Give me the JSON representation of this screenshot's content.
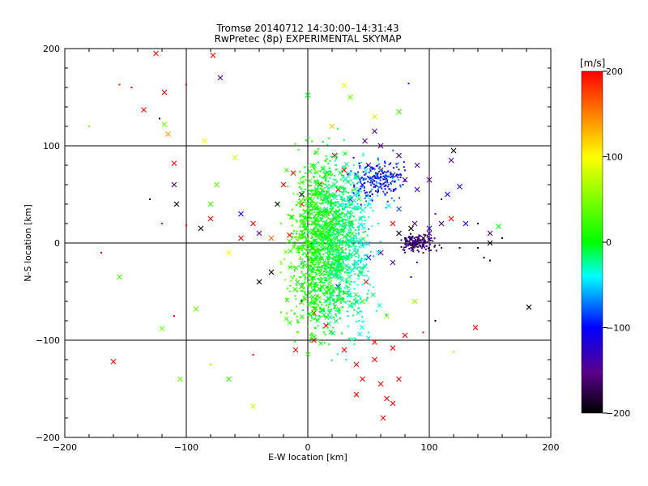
{
  "title_line1": "Tromsø 20140712 14:30:00–14:31:43",
  "title_line2": "RwPretec (8p) EXPERIMENTAL SKYMAP",
  "chart_data": {
    "type": "scatter",
    "title": "Tromsø 20140712 14:30:00–14:31:43 RwPretec (8p) EXPERIMENTAL SKYMAP",
    "xlabel": "E-W location [km]",
    "ylabel": "N-S location [km]",
    "xlim": [
      -200,
      200
    ],
    "ylim": [
      -200,
      200
    ],
    "x_ticks": [
      "−200",
      "−100",
      "0",
      "100",
      "200"
    ],
    "y_ticks": [
      "200",
      "100",
      "0",
      "−100",
      "−200"
    ],
    "grid_lines_x": [
      -100,
      0,
      100
    ],
    "grid_lines_y": [
      -100,
      0,
      100
    ],
    "colorbar": {
      "label": "[m/s]",
      "range": [
        -200,
        200
      ],
      "ticks": [
        "200",
        "100",
        "0",
        "−100",
        "−200"
      ],
      "colors": [
        "#000000",
        "#5a008c",
        "#0000ff",
        "#00ffff",
        "#00ff00",
        "#ffff00",
        "#ff0000"
      ]
    },
    "marker_legend": {
      "cross": "large symbols (x)",
      "dot": "small symbols"
    },
    "points": [
      [
        -125,
        195,
        200,
        "x"
      ],
      [
        -78,
        193,
        200,
        "x"
      ],
      [
        -72,
        170,
        -150,
        "x"
      ],
      [
        -155,
        163,
        200,
        "."
      ],
      [
        -145,
        160,
        200,
        "."
      ],
      [
        -118,
        155,
        200,
        "x"
      ],
      [
        -100,
        163,
        200,
        "."
      ],
      [
        -135,
        137,
        200,
        "x"
      ],
      [
        -122,
        128,
        -200,
        "."
      ],
      [
        -118,
        122,
        40,
        "x"
      ],
      [
        -115,
        112,
        140,
        "x"
      ],
      [
        -180,
        120,
        50,
        "."
      ],
      [
        -110,
        82,
        200,
        "x"
      ],
      [
        -110,
        60,
        -160,
        "x"
      ],
      [
        -108,
        40,
        -200,
        "x"
      ],
      [
        -130,
        45,
        -200,
        "."
      ],
      [
        -85,
        105,
        100,
        "x"
      ],
      [
        -60,
        88,
        80,
        "x"
      ],
      [
        -75,
        60,
        40,
        "x"
      ],
      [
        -80,
        40,
        20,
        "x"
      ],
      [
        -88,
        15,
        -200,
        "x"
      ],
      [
        -80,
        25,
        200,
        "x"
      ],
      [
        -55,
        30,
        -100,
        "x"
      ],
      [
        -45,
        20,
        200,
        "x"
      ],
      [
        -40,
        10,
        -150,
        "x"
      ],
      [
        -30,
        5,
        160,
        "x"
      ],
      [
        -55,
        5,
        200,
        "x"
      ],
      [
        -65,
        -10,
        100,
        "x"
      ],
      [
        -120,
        20,
        200,
        "."
      ],
      [
        -100,
        18,
        200,
        "."
      ],
      [
        -170,
        -10,
        200,
        "."
      ],
      [
        -155,
        -35,
        30,
        "x"
      ],
      [
        -120,
        -88,
        40,
        "x"
      ],
      [
        -110,
        -75,
        200,
        "."
      ],
      [
        -92,
        -68,
        40,
        "x"
      ],
      [
        -160,
        -122,
        200,
        "x"
      ],
      [
        -105,
        -140,
        40,
        "x"
      ],
      [
        -65,
        -140,
        20,
        "x"
      ],
      [
        -45,
        -168,
        80,
        "x"
      ],
      [
        -80,
        -125,
        60,
        "."
      ],
      [
        -30,
        -30,
        -200,
        "x"
      ],
      [
        -40,
        -40,
        -200,
        "x"
      ],
      [
        -20,
        60,
        200,
        "x"
      ],
      [
        -25,
        40,
        -200,
        "x"
      ],
      [
        -12,
        72,
        200,
        "x"
      ],
      [
        10,
        60,
        200,
        "x"
      ],
      [
        22,
        90,
        200,
        "x"
      ],
      [
        25,
        55,
        200,
        "x"
      ],
      [
        30,
        75,
        200,
        "x"
      ],
      [
        -5,
        50,
        -200,
        "x"
      ],
      [
        -15,
        8,
        200,
        "x"
      ],
      [
        -5,
        -60,
        -200,
        "."
      ],
      [
        5,
        -72,
        200,
        "x"
      ],
      [
        15,
        -85,
        200,
        "x"
      ],
      [
        5,
        -100,
        200,
        "x"
      ],
      [
        -10,
        -110,
        200,
        "x"
      ],
      [
        30,
        -110,
        200,
        "x"
      ],
      [
        40,
        -125,
        200,
        "x"
      ],
      [
        45,
        -140,
        200,
        "x"
      ],
      [
        55,
        -120,
        200,
        "x"
      ],
      [
        60,
        -145,
        200,
        "x"
      ],
      [
        65,
        -160,
        200,
        "x"
      ],
      [
        70,
        -165,
        200,
        "x"
      ],
      [
        75,
        -140,
        200,
        "x"
      ],
      [
        40,
        -156,
        200,
        "x"
      ],
      [
        55,
        -102,
        200,
        "x"
      ],
      [
        70,
        -108,
        200,
        "x"
      ],
      [
        80,
        -95,
        200,
        "x"
      ],
      [
        -45,
        -115,
        200,
        "."
      ],
      [
        62,
        -180,
        200,
        "x"
      ],
      [
        95,
        -92,
        200,
        "."
      ],
      [
        120,
        -112,
        60,
        "."
      ],
      [
        138,
        -87,
        200,
        "x"
      ],
      [
        182,
        -66,
        -200,
        "x"
      ],
      [
        105,
        -80,
        -200,
        "."
      ],
      [
        88,
        -60,
        60,
        "x"
      ],
      [
        55,
        130,
        80,
        "x"
      ],
      [
        75,
        135,
        20,
        "x"
      ],
      [
        30,
        162,
        90,
        "x"
      ],
      [
        35,
        150,
        40,
        "x"
      ],
      [
        20,
        120,
        120,
        "x"
      ],
      [
        83,
        164,
        -100,
        "."
      ],
      [
        0,
        152,
        0,
        "x"
      ],
      [
        55,
        115,
        -140,
        "x"
      ],
      [
        47,
        105,
        -150,
        "x"
      ],
      [
        60,
        100,
        -160,
        "x"
      ],
      [
        75,
        90,
        -160,
        "x"
      ],
      [
        90,
        80,
        -150,
        "x"
      ],
      [
        100,
        65,
        -150,
        "x"
      ],
      [
        120,
        95,
        -200,
        "x"
      ],
      [
        118,
        85,
        -150,
        "x"
      ],
      [
        125,
        58,
        -120,
        "x"
      ],
      [
        115,
        50,
        -100,
        "x"
      ],
      [
        90,
        55,
        -130,
        "x"
      ],
      [
        80,
        65,
        -140,
        "x"
      ],
      [
        70,
        70,
        -140,
        "x"
      ],
      [
        60,
        75,
        -150,
        "x"
      ],
      [
        50,
        80,
        -150,
        "x"
      ],
      [
        45,
        60,
        -100,
        "x"
      ],
      [
        35,
        45,
        -130,
        "x"
      ],
      [
        85,
        15,
        -200,
        "x"
      ],
      [
        75,
        10,
        -200,
        "x"
      ],
      [
        70,
        20,
        200,
        "x"
      ],
      [
        88,
        20,
        -150,
        "x"
      ],
      [
        100,
        15,
        -120,
        "x"
      ],
      [
        110,
        20,
        -160,
        "x"
      ],
      [
        118,
        25,
        200,
        "x"
      ],
      [
        140,
        20,
        -200,
        "."
      ],
      [
        150,
        10,
        -160,
        "x"
      ],
      [
        157,
        17,
        0,
        "x"
      ],
      [
        160,
        5,
        -200,
        "."
      ],
      [
        150,
        0,
        -200,
        "x"
      ],
      [
        130,
        20,
        -120,
        "x"
      ],
      [
        105,
        30,
        -150,
        "."
      ],
      [
        92,
        0,
        -200,
        "."
      ],
      [
        100,
        -5,
        -200,
        "."
      ],
      [
        95,
        -10,
        -170,
        "."
      ],
      [
        85,
        -5,
        -150,
        "."
      ],
      [
        80,
        5,
        -200,
        "."
      ],
      [
        110,
        -5,
        -170,
        "."
      ],
      [
        125,
        -5,
        -200,
        "."
      ],
      [
        145,
        -15,
        -200,
        "."
      ],
      [
        140,
        -5,
        -190,
        "."
      ],
      [
        150,
        -18,
        -200,
        "."
      ],
      [
        70,
        -20,
        -150,
        "x"
      ],
      [
        60,
        -10,
        -140,
        "x"
      ],
      [
        50,
        -15,
        -100,
        "x"
      ],
      [
        40,
        -20,
        -120,
        "x"
      ],
      [
        48,
        -40,
        200,
        "x"
      ],
      [
        45,
        -60,
        30,
        "x"
      ],
      [
        65,
        -75,
        60,
        "x"
      ],
      [
        25,
        -45,
        -120,
        "x"
      ],
      [
        95,
        5,
        -180,
        "x"
      ],
      [
        100,
        10,
        -160,
        "x"
      ],
      [
        90,
        -20,
        -130,
        "."
      ],
      [
        85,
        -35,
        -120,
        "."
      ],
      [
        75,
        35,
        -80,
        "x"
      ],
      [
        110,
        45,
        -200,
        "."
      ],
      [
        -5,
        40,
        200,
        "x"
      ],
      [
        15,
        35,
        -50,
        "x"
      ]
    ]
  }
}
